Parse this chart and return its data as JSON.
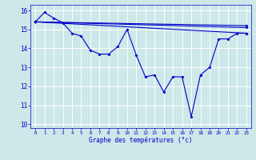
{
  "xlabel": "Graphe des températures (°c)",
  "background_color": "#cce8e8",
  "line_color": "#0000cc",
  "grid_color": "#ffffff",
  "xlim": [
    -0.5,
    23.5
  ],
  "ylim": [
    9.8,
    16.3
  ],
  "xticks": [
    0,
    1,
    2,
    3,
    4,
    5,
    6,
    7,
    8,
    9,
    10,
    11,
    12,
    13,
    14,
    15,
    16,
    17,
    18,
    19,
    20,
    21,
    22,
    23
  ],
  "yticks": [
    10,
    11,
    12,
    13,
    14,
    15,
    16
  ],
  "main_series": [
    15.4,
    15.9,
    15.6,
    15.35,
    14.8,
    14.65,
    13.9,
    13.7,
    13.7,
    14.1,
    15.0,
    13.65,
    12.5,
    12.6,
    11.7,
    12.5,
    12.5,
    10.4,
    12.6,
    13.0,
    14.5,
    14.5,
    14.8,
    14.8
  ],
  "straight_lines": [
    {
      "x": [
        0,
        23
      ],
      "y": [
        15.4,
        14.8
      ]
    },
    {
      "x": [
        0,
        23
      ],
      "y": [
        15.4,
        15.1
      ]
    },
    {
      "x": [
        0,
        23
      ],
      "y": [
        15.4,
        15.2
      ]
    }
  ]
}
